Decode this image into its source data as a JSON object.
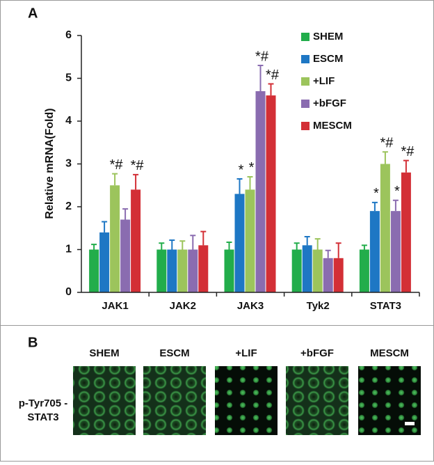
{
  "panel_a": {
    "label": "A"
  },
  "chart_data": {
    "type": "bar",
    "y_label": "Relative mRNA(Fold)",
    "categories": [
      "JAK1",
      "JAK2",
      "JAK3",
      "Tyk2",
      "STAT3"
    ],
    "series": [
      {
        "name": "SHEM",
        "color": "#22ad4b",
        "values": [
          1,
          1,
          1,
          1,
          1
        ],
        "errors": [
          0.12,
          0.15,
          0.17,
          0.15,
          0.1
        ],
        "annotations": [
          null,
          null,
          null,
          null,
          null
        ]
      },
      {
        "name": "ESCM",
        "color": "#1e77c4",
        "values": [
          1.4,
          1.0,
          2.3,
          1.1,
          1.9
        ],
        "errors": [
          0.25,
          0.22,
          0.35,
          0.2,
          0.2
        ],
        "annotations": [
          null,
          null,
          "*",
          null,
          "*"
        ]
      },
      {
        "name": "+LIF",
        "color": "#9cc45c",
        "values": [
          2.5,
          1.0,
          2.4,
          1.0,
          3.0
        ],
        "errors": [
          0.27,
          0.2,
          0.3,
          0.25,
          0.28
        ],
        "annotations": [
          "*#",
          null,
          "*",
          null,
          "*#"
        ]
      },
      {
        "name": "+bFGF",
        "color": "#8a6cb0",
        "values": [
          1.7,
          1.0,
          4.7,
          0.8,
          1.9
        ],
        "errors": [
          0.25,
          0.33,
          0.6,
          0.18,
          0.25
        ],
        "annotations": [
          null,
          null,
          "*#",
          null,
          "*"
        ]
      },
      {
        "name": "MESCM",
        "color": "#d32f36",
        "values": [
          2.4,
          1.1,
          4.6,
          0.8,
          2.8
        ],
        "errors": [
          0.35,
          0.32,
          0.27,
          0.35,
          0.28
        ],
        "annotations": [
          "*#",
          null,
          "*#",
          null,
          "*#"
        ]
      }
    ],
    "ylim": [
      0,
      6
    ],
    "yticks": [
      0,
      1,
      2,
      3,
      4,
      5,
      6
    ],
    "legend": "top-right",
    "grid": false
  },
  "panel_b": {
    "label": "B",
    "row_label": [
      "p-Tyr705 -",
      "STAT3"
    ],
    "columns": [
      "SHEM",
      "ESCM",
      "+LIF",
      "+bFGF",
      "MESCM"
    ]
  }
}
